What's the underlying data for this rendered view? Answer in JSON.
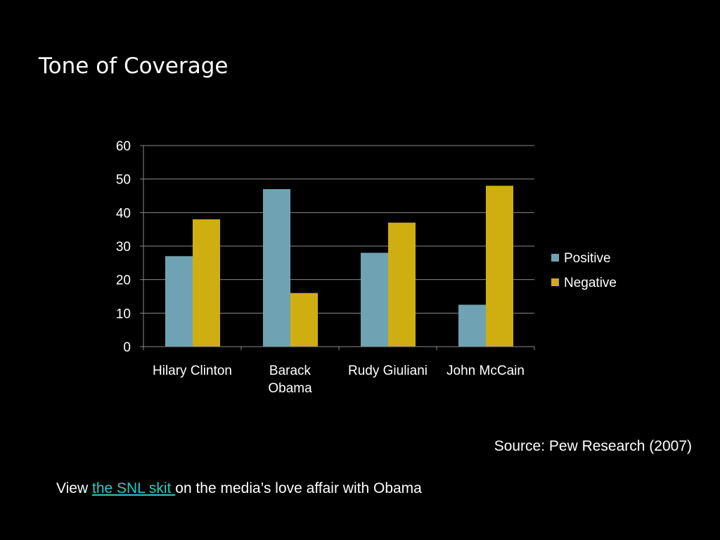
{
  "slide": {
    "title": "Tone of Coverage"
  },
  "source_text": "Source: Pew Research (2007)",
  "footer": {
    "prefix": "View ",
    "link_text": "the SNL skit ",
    "suffix": "on the media’s love affair with Obama"
  },
  "colors": {
    "positive": "#6fa3b3",
    "negative": "#cfae12",
    "link": "#2ec8c8",
    "background": "#000000"
  },
  "chart_data": {
    "type": "bar",
    "title": "",
    "xlabel": "",
    "ylabel": "",
    "categories": [
      [
        "Hilary Clinton"
      ],
      [
        "Barack",
        "Obama"
      ],
      [
        "Rudy Giuliani"
      ],
      [
        "John McCain"
      ]
    ],
    "series": [
      {
        "name": "Positive",
        "values": [
          27,
          47,
          28,
          12.5
        ]
      },
      {
        "name": "Negative",
        "values": [
          38,
          16,
          37,
          48
        ]
      }
    ],
    "ylim": [
      0,
      60
    ],
    "yticks": [
      0,
      10,
      20,
      30,
      40,
      50,
      60
    ],
    "grid": true,
    "legend": "right"
  }
}
